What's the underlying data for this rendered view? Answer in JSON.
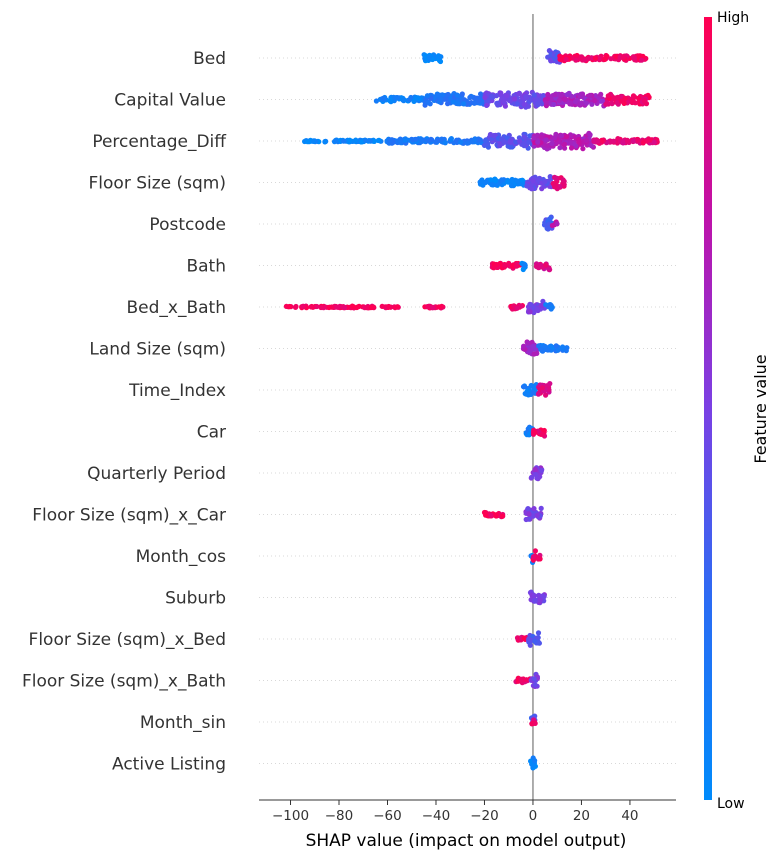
{
  "chart_data": {
    "type": "scatter",
    "subtype": "shap-beeswarm",
    "xlabel": "SHAP value (impact on model output)",
    "xlim": [
      -113,
      59
    ],
    "xticks": [
      -100,
      -80,
      -60,
      -40,
      -20,
      0,
      20,
      40
    ],
    "xtick_labels": [
      "−100",
      "−80",
      "−60",
      "−40",
      "−20",
      "0",
      "20",
      "40"
    ],
    "colorbar": {
      "title": "Feature value",
      "high_label": "High",
      "low_label": "Low",
      "low_color": "#008bfb",
      "high_color": "#ff0051"
    },
    "features": [
      {
        "name": "Bed",
        "clusters": [
          {
            "x": [
              -45,
              -38
            ],
            "v": 0.05,
            "h": 0.45
          },
          {
            "x": [
              6,
              11
            ],
            "v": 0.4,
            "h": 0.9
          },
          {
            "x": [
              11,
              47
            ],
            "v": 0.95,
            "h": 0.35
          }
        ]
      },
      {
        "name": "Capital Value",
        "clusters": [
          {
            "x": [
              -66,
              -45
            ],
            "v": 0.08,
            "h": 0.3
          },
          {
            "x": [
              -45,
              -20
            ],
            "v": 0.18,
            "h": 0.7
          },
          {
            "x": [
              -20,
              5
            ],
            "v": 0.45,
            "h": 0.9
          },
          {
            "x": [
              5,
              30
            ],
            "v": 0.65,
            "h": 0.8
          },
          {
            "x": [
              30,
              48
            ],
            "v": 0.92,
            "h": 0.6
          }
        ]
      },
      {
        "name": "Percentage_Diff",
        "clusters": [
          {
            "x": [
              -96,
              -60
            ],
            "v": 0.05,
            "h": 0.12
          },
          {
            "x": [
              -60,
              -20
            ],
            "v": 0.15,
            "h": 0.3
          },
          {
            "x": [
              -20,
              0
            ],
            "v": 0.4,
            "h": 0.8
          },
          {
            "x": [
              0,
              25
            ],
            "v": 0.7,
            "h": 0.9
          },
          {
            "x": [
              25,
              52
            ],
            "v": 0.9,
            "h": 0.3
          }
        ]
      },
      {
        "name": "Floor Size (sqm)",
        "clusters": [
          {
            "x": [
              -23,
              -3
            ],
            "v": 0.05,
            "h": 0.45
          },
          {
            "x": [
              -3,
              8
            ],
            "v": 0.45,
            "h": 0.8
          },
          {
            "x": [
              8,
              13
            ],
            "v": 0.9,
            "h": 0.75
          }
        ]
      },
      {
        "name": "Postcode",
        "clusters": [
          {
            "x": [
              4,
              8
            ],
            "v": 0.35,
            "h": 0.8
          },
          {
            "x": [
              8,
              10
            ],
            "v": 0.75,
            "h": 0.3
          }
        ]
      },
      {
        "name": "Bath",
        "clusters": [
          {
            "x": [
              -17,
              -5
            ],
            "v": 0.97,
            "h": 0.35
          },
          {
            "x": [
              -5,
              -3
            ],
            "v": 0.05,
            "h": 0.7
          },
          {
            "x": [
              1,
              7
            ],
            "v": 0.85,
            "h": 0.5
          }
        ]
      },
      {
        "name": "Bed_x_Bath",
        "clusters": [
          {
            "x": [
              -102,
              -65
            ],
            "v": 0.97,
            "h": 0.12
          },
          {
            "x": [
              -63,
              -55
            ],
            "v": 0.97,
            "h": 0.08
          },
          {
            "x": [
              -45,
              -37
            ],
            "v": 0.97,
            "h": 0.12
          },
          {
            "x": [
              -10,
              -4
            ],
            "v": 0.95,
            "h": 0.25
          },
          {
            "x": [
              -2,
              5
            ],
            "v": 0.5,
            "h": 0.7
          },
          {
            "x": [
              5,
              8
            ],
            "v": 0.1,
            "h": 0.35
          }
        ]
      },
      {
        "name": "Land Size (sqm)",
        "clusters": [
          {
            "x": [
              -4,
              2
            ],
            "v": 0.65,
            "h": 0.75
          },
          {
            "x": [
              2,
              14
            ],
            "v": 0.15,
            "h": 0.35
          }
        ]
      },
      {
        "name": "Time_Index",
        "clusters": [
          {
            "x": [
              -4,
              2
            ],
            "v": 0.1,
            "h": 0.75
          },
          {
            "x": [
              2,
              7
            ],
            "v": 0.85,
            "h": 0.75
          }
        ]
      },
      {
        "name": "Car",
        "clusters": [
          {
            "x": [
              -3,
              0
            ],
            "v": 0.1,
            "h": 0.8
          },
          {
            "x": [
              0,
              5
            ],
            "v": 0.95,
            "h": 0.55
          }
        ]
      },
      {
        "name": "Quarterly Period",
        "clusters": [
          {
            "x": [
              -1,
              4
            ],
            "v": 0.55,
            "h": 0.75
          }
        ]
      },
      {
        "name": "Floor Size (sqm)_x_Car",
        "clusters": [
          {
            "x": [
              -20,
              -12
            ],
            "v": 0.97,
            "h": 0.3
          },
          {
            "x": [
              -3,
              4
            ],
            "v": 0.5,
            "h": 0.8
          }
        ]
      },
      {
        "name": "Month_cos",
        "clusters": [
          {
            "x": [
              -1,
              0
            ],
            "v": 0.08,
            "h": 0.85
          },
          {
            "x": [
              0,
              3
            ],
            "v": 0.92,
            "h": 0.6
          }
        ]
      },
      {
        "name": "Suburb",
        "clusters": [
          {
            "x": [
              -1,
              5
            ],
            "v": 0.5,
            "h": 0.7
          }
        ]
      },
      {
        "name": "Floor Size (sqm)_x_Bed",
        "clusters": [
          {
            "x": [
              -7,
              0
            ],
            "v": 0.92,
            "h": 0.3
          },
          {
            "x": [
              -2,
              3
            ],
            "v": 0.35,
            "h": 0.8
          }
        ]
      },
      {
        "name": "Floor Size (sqm)_x_Bath",
        "clusters": [
          {
            "x": [
              -7,
              -1
            ],
            "v": 0.92,
            "h": 0.3
          },
          {
            "x": [
              -1,
              2
            ],
            "v": 0.5,
            "h": 0.8
          }
        ]
      },
      {
        "name": "Month_sin",
        "clusters": [
          {
            "x": [
              -1,
              1
            ],
            "v": 0.35,
            "h": 0.8
          },
          {
            "x": [
              -1,
              1
            ],
            "v": 0.95,
            "h": 0.35
          }
        ]
      },
      {
        "name": "Active Listing",
        "clusters": [
          {
            "x": [
              -1,
              1
            ],
            "v": 0.05,
            "h": 0.85
          }
        ]
      }
    ]
  }
}
